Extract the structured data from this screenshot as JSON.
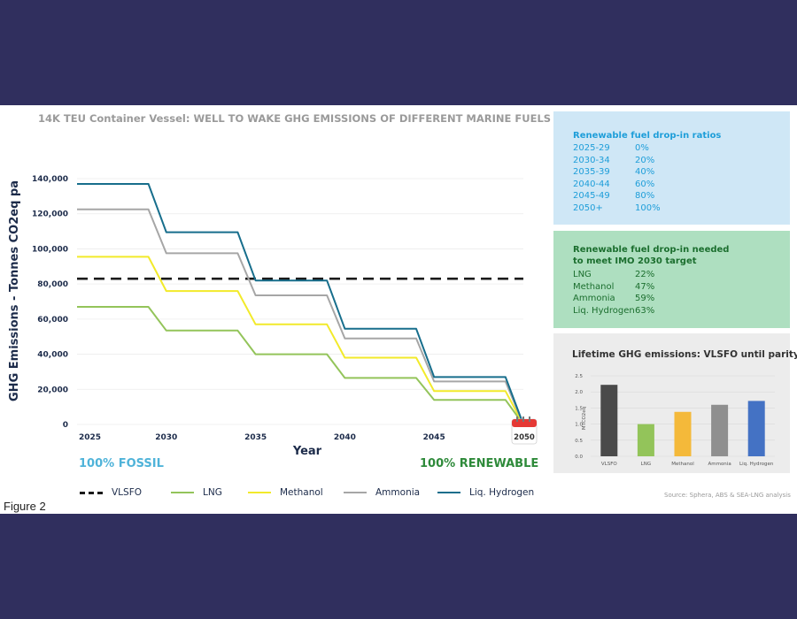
{
  "figure_label": "Figure 2",
  "source_text": "Source: Sphera, ABS & SEA-LNG analysis",
  "chart_data": [
    {
      "type": "line",
      "title": "14K TEU Container Vessel: WELL TO WAKE GHG EMISSIONS OF DIFFERENT MARINE FUELS",
      "xlabel": "Year",
      "ylabel": "GHG Emissions - Tonnes CO2eq pa",
      "xlim": [
        2025,
        2050
      ],
      "ylim": [
        0,
        140000
      ],
      "y_ticks": [
        0,
        20000,
        40000,
        60000,
        80000,
        100000,
        120000,
        140000
      ],
      "y_tick_labels": [
        "0",
        "20,000",
        "40,000",
        "60,000",
        "80,000",
        "100,000",
        "120,000",
        "140,000"
      ],
      "x_ticks": [
        2025,
        2030,
        2035,
        2040,
        2045
      ],
      "x_tick_labels": [
        "2025",
        "2030",
        "2035",
        "2040",
        "2045"
      ],
      "end_marker_label": "2050",
      "grid": "horizontal",
      "legend_position": "bottom",
      "left_annotation": "100% FOSSIL",
      "right_annotation": "100% RENEWABLE",
      "series": [
        {
          "name": "VLSFO",
          "color": "#1a1a1a",
          "dashed": true,
          "points": [
            [
              2025,
              83000
            ],
            [
              2050,
              83000
            ]
          ]
        },
        {
          "name": "LNG",
          "color": "#93c45a",
          "points": [
            [
              2025,
              67000
            ],
            [
              2029,
              67000
            ],
            [
              2030,
              53500
            ],
            [
              2034,
              53500
            ],
            [
              2035,
              40000
            ],
            [
              2039,
              40000
            ],
            [
              2040,
              26500
            ],
            [
              2044,
              26500
            ],
            [
              2045,
              14000
            ],
            [
              2049,
              14000
            ],
            [
              2050,
              0
            ]
          ]
        },
        {
          "name": "Methanol",
          "color": "#f2ea2a",
          "points": [
            [
              2025,
              95500
            ],
            [
              2029,
              95500
            ],
            [
              2030,
              76000
            ],
            [
              2034,
              76000
            ],
            [
              2035,
              57000
            ],
            [
              2039,
              57000
            ],
            [
              2040,
              38000
            ],
            [
              2044,
              38000
            ],
            [
              2045,
              19000
            ],
            [
              2049,
              19000
            ],
            [
              2050,
              0
            ]
          ]
        },
        {
          "name": "Ammonia",
          "color": "#a6a6a6",
          "points": [
            [
              2025,
              122500
            ],
            [
              2029,
              122500
            ],
            [
              2030,
              97500
            ],
            [
              2034,
              97500
            ],
            [
              2035,
              73500
            ],
            [
              2039,
              73500
            ],
            [
              2040,
              49000
            ],
            [
              2044,
              49000
            ],
            [
              2045,
              24500
            ],
            [
              2049,
              24500
            ],
            [
              2050,
              0
            ]
          ]
        },
        {
          "name": "Liq. Hydrogen",
          "color": "#176e8c",
          "points": [
            [
              2025,
              137000
            ],
            [
              2029,
              137000
            ],
            [
              2030,
              109500
            ],
            [
              2034,
              109500
            ],
            [
              2035,
              82000
            ],
            [
              2039,
              82000
            ],
            [
              2040,
              54500
            ],
            [
              2044,
              54500
            ],
            [
              2045,
              27000
            ],
            [
              2049,
              27000
            ],
            [
              2050,
              0
            ]
          ]
        }
      ]
    },
    {
      "type": "bar",
      "title": "Lifetime GHG emissions: VLSFO until parity",
      "ylabel": "MTCO2eq",
      "ylim": [
        0,
        2.5
      ],
      "y_ticks": [
        0,
        0.5,
        1.0,
        1.5,
        2.0,
        2.5
      ],
      "y_tick_labels": [
        "0.0",
        "0.5",
        "1.0",
        "1.5",
        "2.0",
        "2.5"
      ],
      "categories": [
        "VLSFO",
        "LNG",
        "Methanol",
        "Ammonia",
        "Liq. Hydrogen"
      ],
      "values": [
        2.22,
        1.0,
        1.38,
        1.6,
        1.72
      ],
      "colors": [
        "#4a4a4a",
        "#93c45a",
        "#f4b93a",
        "#8f8f8f",
        "#4472c4"
      ]
    }
  ],
  "ratios_box": {
    "title": "Renewable fuel drop-in ratios",
    "rows": [
      {
        "label": "2025-29",
        "value": "0%"
      },
      {
        "label": "2030-34",
        "value": "20%"
      },
      {
        "label": "2035-39",
        "value": "40%"
      },
      {
        "label": "2040-44",
        "value": "60%"
      },
      {
        "label": "2045-49",
        "value": "80%"
      },
      {
        "label": "2050+",
        "value": "100%"
      }
    ]
  },
  "target_box": {
    "title_line1": "Renewable fuel drop-in needed",
    "title_line2": "to meet IMO 2030 target",
    "rows": [
      {
        "label": "LNG",
        "value": "22%"
      },
      {
        "label": "Methanol",
        "value": "47%"
      },
      {
        "label": "Ammonia",
        "value": "59%"
      },
      {
        "label": "Liq. Hydrogen",
        "value": "63%"
      }
    ]
  }
}
